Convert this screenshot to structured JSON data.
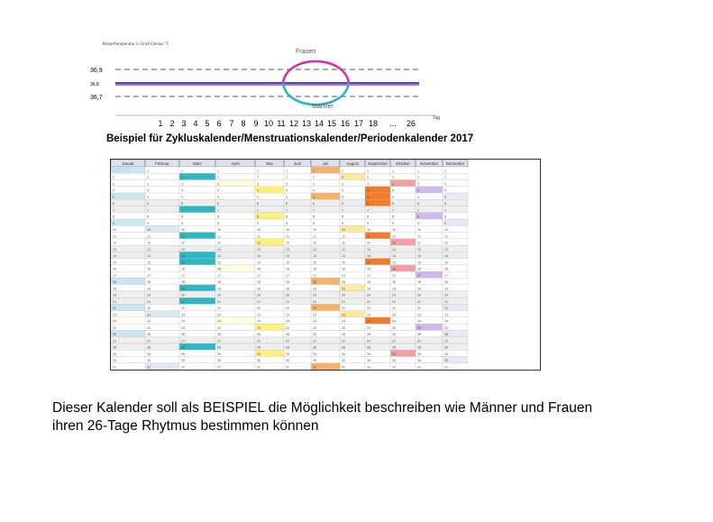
{
  "chart": {
    "top_label": "Körpertemperatur in Grad Celsius °C",
    "label_frauen": "Frauen",
    "label_maenner": "Männer",
    "y_labels": [
      "36,9",
      "36,8",
      "36,7"
    ],
    "x_labels": [
      "1",
      "2",
      "3",
      "4",
      "5",
      "6",
      "7",
      "8",
      "9",
      "10",
      "11",
      "12",
      "13",
      "14",
      "15",
      "16",
      "17",
      "18",
      "...",
      "26"
    ],
    "x_unit": "Tag",
    "colors": {
      "frauen": "#cc33aa",
      "maenner": "#3366cc",
      "baseline": "#3355cc",
      "dashed": "#555555"
    }
  },
  "calendar": {
    "title": "Beispiel für Zykluskalender/Menstruationskalender/Periodenkalender 2017",
    "months": [
      "Januar",
      "Februar",
      "März",
      "April",
      "Mai",
      "Juni",
      "Juli",
      "August",
      "September",
      "Oktober",
      "November",
      "Dezember"
    ],
    "month_colors": [
      "#c9e6f2",
      "#dde8f3",
      "#2fb8c4",
      "#fffde0",
      "#fff17a",
      "#ffffff",
      "#f7b26a",
      "#ffe9a0",
      "#f57a2a",
      "#f5a0a0",
      "#d2b8ee",
      "#e8e8f8"
    ]
  },
  "caption": {
    "line1": "Dieser Kalender soll als BEISPIEL die Möglichkeit beschreiben wie Männer und Frauen",
    "line2": "ihren 26-Tage Rhytmus bestimmen können"
  }
}
